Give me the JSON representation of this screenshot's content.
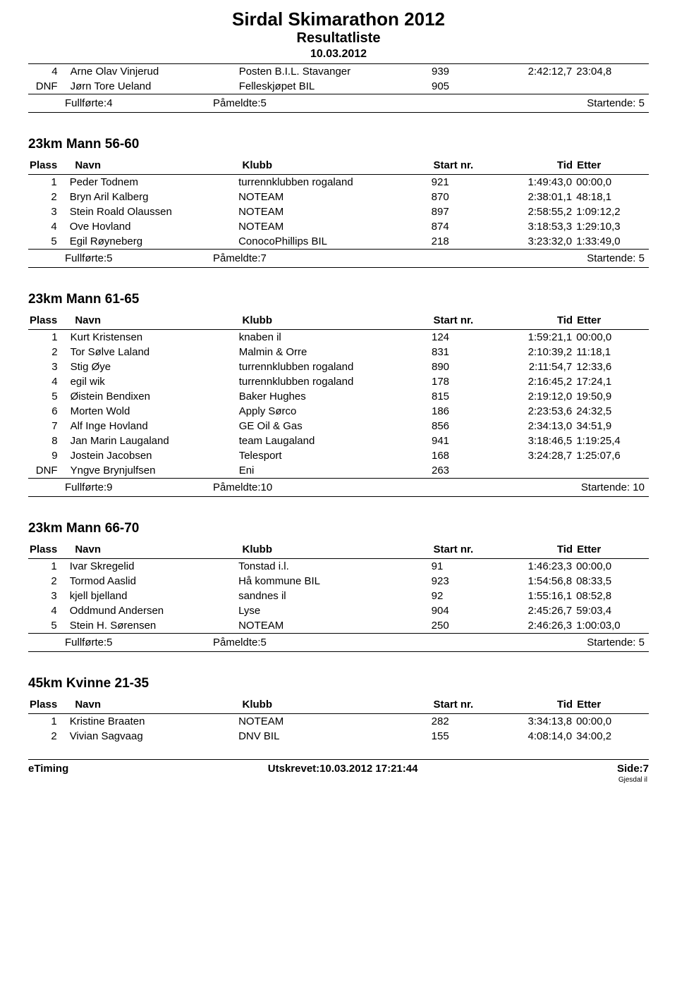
{
  "header": {
    "title": "Sirdal Skimarathon 2012",
    "subtitle": "Resultatliste",
    "date": "10.03.2012"
  },
  "labels": {
    "plass": "Plass",
    "navn": "Navn",
    "klubb": "Klubb",
    "startnr": "Start nr.",
    "tid": "Tid",
    "etter": "Etter",
    "fullforte": "Fullførte:",
    "pameldte": "Påmeldte:",
    "startende": "Startende:"
  },
  "topGroup": {
    "rows": [
      {
        "pl": "4",
        "navn": "Arne Olav Vinjerud",
        "klubb": "Posten B.I.L. Stavanger",
        "start": "939",
        "tid": "2:42:12,7",
        "etter": "23:04,8"
      },
      {
        "pl": "DNF",
        "navn": "Jørn Tore Ueland",
        "klubb": "Felleskjøpet BIL",
        "start": "905",
        "tid": "",
        "etter": ""
      }
    ],
    "summary": {
      "fullforte": "4",
      "pameldte": "5",
      "startende": "5"
    }
  },
  "sections": [
    {
      "title": "23km Mann 56-60",
      "rows": [
        {
          "pl": "1",
          "navn": "Peder Todnem",
          "klubb": "turrennklubben rogaland",
          "start": "921",
          "tid": "1:49:43,0",
          "etter": "00:00,0"
        },
        {
          "pl": "2",
          "navn": "Bryn Aril Kalberg",
          "klubb": "NOTEAM",
          "start": "870",
          "tid": "2:38:01,1",
          "etter": "48:18,1"
        },
        {
          "pl": "3",
          "navn": "Stein Roald Olaussen",
          "klubb": "NOTEAM",
          "start": "897",
          "tid": "2:58:55,2",
          "etter": "1:09:12,2"
        },
        {
          "pl": "4",
          "navn": "Ove Hovland",
          "klubb": "NOTEAM",
          "start": "874",
          "tid": "3:18:53,3",
          "etter": "1:29:10,3"
        },
        {
          "pl": "5",
          "navn": "Egil Røyneberg",
          "klubb": "ConocoPhillips BIL",
          "start": "218",
          "tid": "3:23:32,0",
          "etter": "1:33:49,0"
        }
      ],
      "summary": {
        "fullforte": "5",
        "pameldte": "7",
        "startende": "5"
      }
    },
    {
      "title": "23km Mann 61-65",
      "rows": [
        {
          "pl": "1",
          "navn": "Kurt Kristensen",
          "klubb": "knaben il",
          "start": "124",
          "tid": "1:59:21,1",
          "etter": "00:00,0"
        },
        {
          "pl": "2",
          "navn": "Tor Sølve Laland",
          "klubb": "Malmin & Orre",
          "start": "831",
          "tid": "2:10:39,2",
          "etter": "11:18,1"
        },
        {
          "pl": "3",
          "navn": "Stig Øye",
          "klubb": "turrennklubben rogaland",
          "start": "890",
          "tid": "2:11:54,7",
          "etter": "12:33,6"
        },
        {
          "pl": "4",
          "navn": "egil wik",
          "klubb": "turrennklubben rogaland",
          "start": "178",
          "tid": "2:16:45,2",
          "etter": "17:24,1"
        },
        {
          "pl": "5",
          "navn": "Øistein Bendixen",
          "klubb": "Baker Hughes",
          "start": "815",
          "tid": "2:19:12,0",
          "etter": "19:50,9"
        },
        {
          "pl": "6",
          "navn": "Morten Wold",
          "klubb": "Apply Sørco",
          "start": "186",
          "tid": "2:23:53,6",
          "etter": "24:32,5"
        },
        {
          "pl": "7",
          "navn": "Alf Inge Hovland",
          "klubb": "GE Oil & Gas",
          "start": "856",
          "tid": "2:34:13,0",
          "etter": "34:51,9"
        },
        {
          "pl": "8",
          "navn": "Jan Marin Laugaland",
          "klubb": "team Laugaland",
          "start": "941",
          "tid": "3:18:46,5",
          "etter": "1:19:25,4"
        },
        {
          "pl": "9",
          "navn": "Jostein Jacobsen",
          "klubb": "Telesport",
          "start": "168",
          "tid": "3:24:28,7",
          "etter": "1:25:07,6"
        },
        {
          "pl": "DNF",
          "navn": "Yngve Brynjulfsen",
          "klubb": "Eni",
          "start": "263",
          "tid": "",
          "etter": ""
        }
      ],
      "summary": {
        "fullforte": "9",
        "pameldte": "10",
        "startende": "10"
      }
    },
    {
      "title": "23km Mann 66-70",
      "rows": [
        {
          "pl": "1",
          "navn": "Ivar Skregelid",
          "klubb": "Tonstad i.l.",
          "start": "91",
          "tid": "1:46:23,3",
          "etter": "00:00,0"
        },
        {
          "pl": "2",
          "navn": "Tormod Aaslid",
          "klubb": "Hå kommune BIL",
          "start": "923",
          "tid": "1:54:56,8",
          "etter": "08:33,5"
        },
        {
          "pl": "3",
          "navn": "kjell bjelland",
          "klubb": "sandnes il",
          "start": "92",
          "tid": "1:55:16,1",
          "etter": "08:52,8"
        },
        {
          "pl": "4",
          "navn": "Oddmund Andersen",
          "klubb": "Lyse",
          "start": "904",
          "tid": "2:45:26,7",
          "etter": "59:03,4"
        },
        {
          "pl": "5",
          "navn": "Stein H. Sørensen",
          "klubb": "NOTEAM",
          "start": "250",
          "tid": "2:46:26,3",
          "etter": "1:00:03,0"
        }
      ],
      "summary": {
        "fullforte": "5",
        "pameldte": "5",
        "startende": "5"
      }
    },
    {
      "title": "45km Kvinne 21-35",
      "rows": [
        {
          "pl": "1",
          "navn": "Kristine Braaten",
          "klubb": "NOTEAM",
          "start": "282",
          "tid": "3:34:13,8",
          "etter": "00:00,0"
        },
        {
          "pl": "2",
          "navn": "Vivian Sagvaag",
          "klubb": "DNV BIL",
          "start": "155",
          "tid": "4:08:14,0",
          "etter": "34:00,2"
        }
      ],
      "summary": null
    }
  ],
  "footer": {
    "left": "eTiming",
    "center": "Utskrevet:10.03.2012 17:21:44",
    "right": "Side:7",
    "bottom": "Gjesdal il"
  }
}
